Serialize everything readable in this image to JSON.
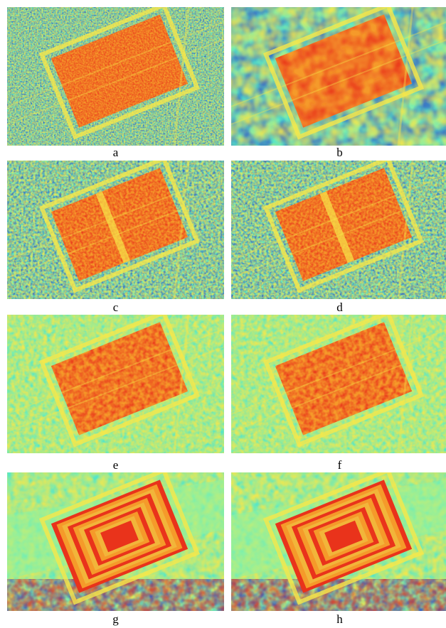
{
  "panels": [
    {
      "label": "a",
      "texture": "noisy"
    },
    {
      "label": "b",
      "texture": "smooth-blobs"
    },
    {
      "label": "c",
      "texture": "noisy-structured"
    },
    {
      "label": "d",
      "texture": "noisy-structured"
    },
    {
      "label": "e",
      "texture": "soft-noise"
    },
    {
      "label": "f",
      "texture": "soft-noise"
    },
    {
      "label": "g",
      "texture": "nested-rectangles"
    },
    {
      "label": "h",
      "texture": "nested-rectangles"
    }
  ],
  "colors": {
    "cyan": "#55e6c8",
    "green": "#8ef2a0",
    "yellow": "#f6e74a",
    "orange": "#f59a2a",
    "red": "#e9331b",
    "blue": "#2b52c8"
  }
}
